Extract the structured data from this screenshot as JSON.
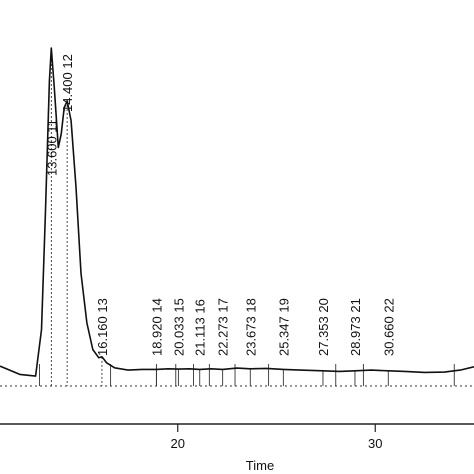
{
  "chart_data": {
    "type": "line",
    "title": "",
    "xlabel": "Time",
    "ylabel": "",
    "xlim": [
      11.0,
      35.0
    ],
    "ylim": [
      -2,
      100
    ],
    "x_ticks": [
      20,
      30
    ],
    "x_tick_labels": [
      "20",
      "30"
    ],
    "grid": false,
    "series": [
      {
        "x": [
          11.0,
          12.0,
          12.8,
          13.1,
          13.3,
          13.5,
          13.6,
          13.75,
          13.95,
          14.1,
          14.25,
          14.4,
          14.6,
          14.85,
          15.1,
          15.4,
          15.7,
          16.0,
          16.16,
          16.4,
          16.8,
          17.5,
          18.2,
          18.92,
          19.5,
          20.033,
          20.6,
          21.113,
          21.7,
          22.273,
          23.0,
          23.673,
          24.5,
          25.347,
          26.2,
          27.353,
          28.2,
          28.973,
          29.8,
          30.66,
          31.5,
          32.5,
          33.5,
          34.3,
          35.0
        ],
        "y": [
          4.0,
          1.5,
          1.0,
          15.0,
          50.0,
          90.0,
          100.0,
          88.0,
          70.0,
          74.0,
          82.0,
          84.0,
          78.0,
          58.0,
          32.0,
          17.0,
          9.0,
          6.5,
          6.8,
          5.0,
          3.5,
          2.8,
          3.0,
          3.0,
          3.2,
          3.1,
          3.2,
          3.0,
          3.2,
          3.0,
          3.4,
          3.2,
          3.3,
          3.0,
          2.8,
          2.6,
          2.4,
          2.6,
          2.8,
          2.6,
          2.4,
          2.1,
          2.2,
          2.8,
          3.8
        ]
      }
    ],
    "peaks": [
      {
        "time": "13.600",
        "number": "11",
        "x": 13.6
      },
      {
        "time": "14.400",
        "number": "12",
        "x": 14.4
      },
      {
        "time": "16.160",
        "number": "13",
        "x": 16.16
      },
      {
        "time": "18.920",
        "number": "14",
        "x": 18.92
      },
      {
        "time": "20.033",
        "number": "15",
        "x": 20.033
      },
      {
        "time": "21.113",
        "number": "16",
        "x": 21.113
      },
      {
        "time": "22.273",
        "number": "17",
        "x": 22.273
      },
      {
        "time": "23.673",
        "number": "18",
        "x": 23.673
      },
      {
        "time": "25.347",
        "number": "19",
        "x": 25.347
      },
      {
        "time": "27.353",
        "number": "20",
        "x": 27.353
      },
      {
        "time": "28.973",
        "number": "21",
        "x": 28.973
      },
      {
        "time": "30.660",
        "number": "22",
        "x": 30.66
      }
    ],
    "integration_marks_x": [
      13.0,
      16.6,
      18.92,
      19.9,
      20.8,
      21.6,
      22.9,
      24.6,
      28.0,
      29.4,
      34.0
    ]
  }
}
